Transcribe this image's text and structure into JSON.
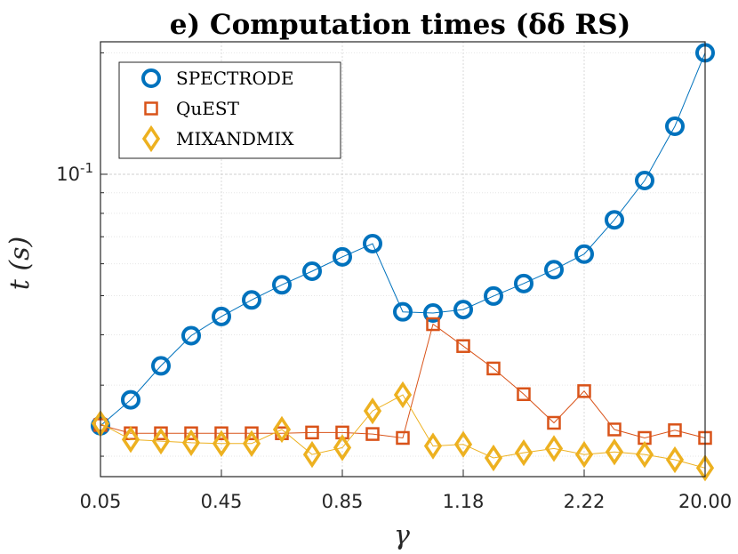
{
  "chart_data": {
    "type": "line",
    "title": "e) Computation times (δδ RS)",
    "xlabel": "γ",
    "ylabel": "t (s)",
    "yscale": "log",
    "ylim": [
      0.0178,
      0.213
    ],
    "x_tick_labels": [
      "0.05",
      "0.45",
      "0.85",
      "1.18",
      "2.22",
      "20.00"
    ],
    "x_tick_indices": [
      0,
      4,
      8,
      12,
      16,
      20
    ],
    "y_tick_label_base": "10",
    "y_tick_label_exp": "-1",
    "y_tick_value": 0.1,
    "grid": true,
    "legend_position": "top-left",
    "series": [
      {
        "name": "SPECTRODE",
        "marker": "circle",
        "color": "#0072BD",
        "values": [
          0.0238,
          0.0276,
          0.0335,
          0.0398,
          0.0444,
          0.0488,
          0.0532,
          0.0575,
          0.0624,
          0.0673,
          0.0456,
          0.0453,
          0.0462,
          0.0499,
          0.0536,
          0.058,
          0.0634,
          0.0771,
          0.0965,
          0.1315,
          0.2
        ]
      },
      {
        "name": "QuEST",
        "marker": "square",
        "color": "#D95319",
        "values": [
          0.0239,
          0.0228,
          0.0228,
          0.0228,
          0.0228,
          0.0228,
          0.0228,
          0.0229,
          0.0229,
          0.0227,
          0.0222,
          0.0425,
          0.0375,
          0.033,
          0.0285,
          0.0242,
          0.029,
          0.0233,
          0.0222,
          0.0232,
          0.0222
        ]
      },
      {
        "name": "MIXANDMIX",
        "marker": "diamond",
        "color": "#EDB120",
        "values": [
          0.0241,
          0.022,
          0.0218,
          0.0216,
          0.0215,
          0.0215,
          0.0233,
          0.0202,
          0.021,
          0.0259,
          0.0284,
          0.0212,
          0.0214,
          0.0198,
          0.0204,
          0.0209,
          0.0202,
          0.0205,
          0.0202,
          0.0196,
          0.0187
        ]
      }
    ]
  }
}
